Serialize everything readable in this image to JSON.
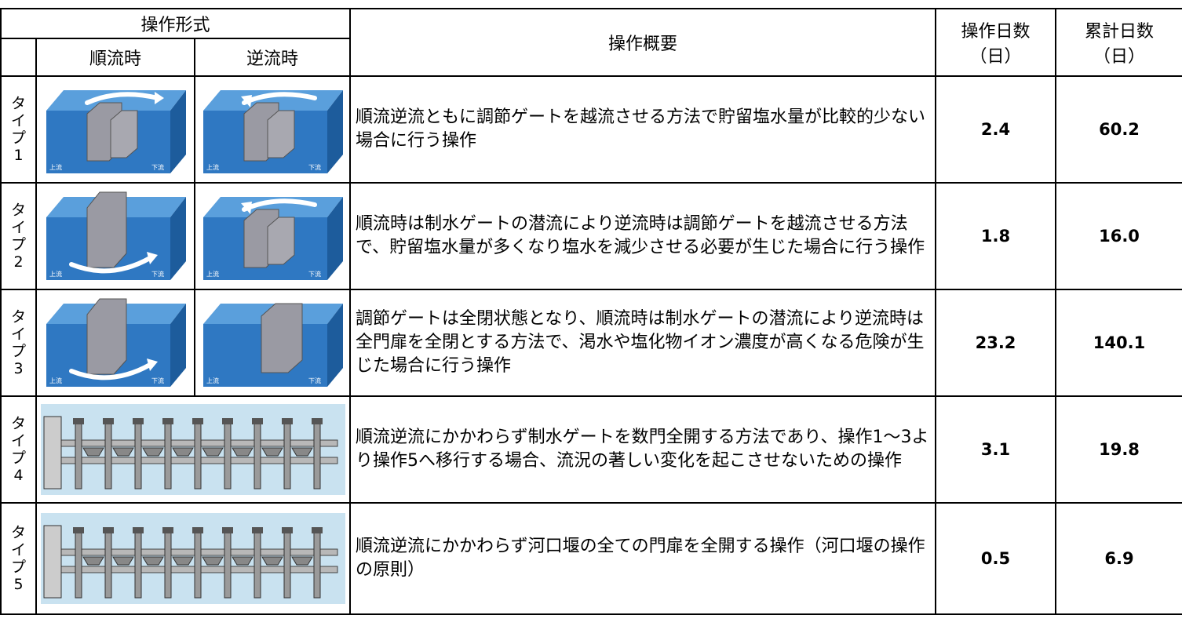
{
  "header": {
    "operation_form": "操作形式",
    "forward": "順流時",
    "reverse": "逆流時",
    "summary": "操作概要",
    "days": "操作日数",
    "days_unit": "（日）",
    "cumulative": "累計日数",
    "cumulative_unit": "（日）"
  },
  "image_labels": {
    "upstream": "上流",
    "downstream": "下流"
  },
  "rows": [
    {
      "type": "タイプ1",
      "summary": "順流逆流ともに調節ゲートを越流させる方法で貯留塩水量が比較的少ない場合に行う操作",
      "days": "2.4",
      "cumulative": "60.2"
    },
    {
      "type": "タイプ2",
      "summary": "順流時は制水ゲートの潜流により逆流時は調節ゲートを越流させる方法で、貯留塩水量が多くなり塩水を減少させる必要が生じた場合に行う操作",
      "days": "1.8",
      "cumulative": "16.0"
    },
    {
      "type": "タイプ3",
      "summary": "調節ゲートは全閉状態となり、順流時は制水ゲートの潜流により逆流時は全門扉を全閉とする方法で、渇水や塩化物イオン濃度が高くなる危険が生じた場合に行う操作",
      "days": "23.2",
      "cumulative": "140.1"
    },
    {
      "type": "タイプ4",
      "summary": "順流逆流にかかわらず制水ゲートを数門全開する方法であり、操作1～3より操作5へ移行する場合、流況の著しい変化を起こさせないための操作",
      "days": "3.1",
      "cumulative": "19.8"
    },
    {
      "type": "タイプ5",
      "summary": "順流逆流にかかわらず河口堰の全ての門扉を全開する操作（河口堰の操作の原則）",
      "days": "0.5",
      "cumulative": "6.9"
    }
  ]
}
